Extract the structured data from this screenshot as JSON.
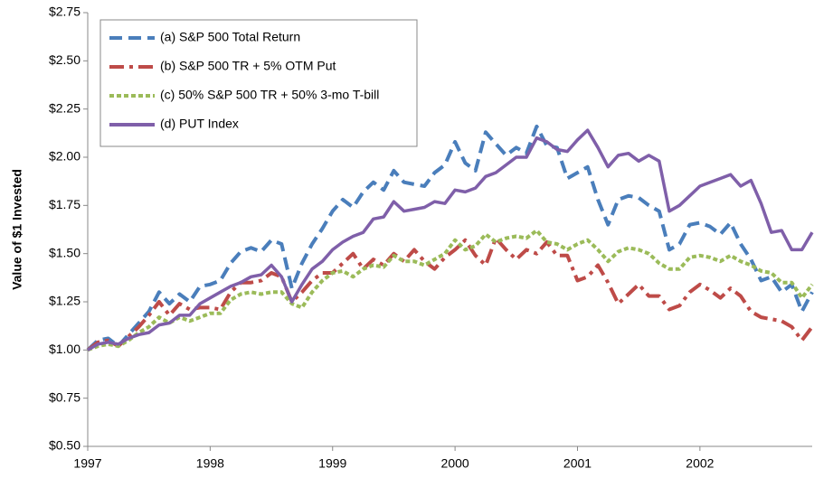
{
  "chart_data": {
    "type": "line",
    "y_label": "Value of $1 Invested",
    "x": [
      1997,
      1997.083,
      1997.167,
      1997.25,
      1997.333,
      1997.417,
      1997.5,
      1997.583,
      1997.667,
      1997.75,
      1997.833,
      1997.917,
      1998,
      1998.083,
      1998.167,
      1998.25,
      1998.333,
      1998.417,
      1998.5,
      1998.583,
      1998.667,
      1998.75,
      1998.833,
      1998.917,
      1999,
      1999.083,
      1999.167,
      1999.25,
      1999.333,
      1999.417,
      1999.5,
      1999.583,
      1999.667,
      1999.75,
      1999.833,
      1999.917,
      2000,
      2000.083,
      2000.167,
      2000.25,
      2000.333,
      2000.417,
      2000.5,
      2000.583,
      2000.667,
      2000.75,
      2000.833,
      2000.917,
      2001,
      2001.083,
      2001.167,
      2001.25,
      2001.333,
      2001.417,
      2001.5,
      2001.583,
      2001.667,
      2001.75,
      2001.833,
      2001.917,
      2002,
      2002.083,
      2002.167,
      2002.25,
      2002.333,
      2002.417,
      2002.5,
      2002.583,
      2002.667,
      2002.75,
      2002.833,
      2002.917
    ],
    "series": [
      {
        "name": "(a) S&P 500 Total Return",
        "color": "#4a7ebb",
        "dash": "dashed",
        "values": [
          1.0,
          1.05,
          1.06,
          1.02,
          1.08,
          1.14,
          1.2,
          1.3,
          1.24,
          1.29,
          1.25,
          1.33,
          1.34,
          1.36,
          1.45,
          1.51,
          1.53,
          1.51,
          1.57,
          1.55,
          1.32,
          1.45,
          1.55,
          1.63,
          1.72,
          1.78,
          1.74,
          1.82,
          1.87,
          1.83,
          1.93,
          1.87,
          1.86,
          1.85,
          1.92,
          1.96,
          2.08,
          1.97,
          1.93,
          2.13,
          2.07,
          2.01,
          2.05,
          2.02,
          2.16,
          2.06,
          2.05,
          1.89,
          1.92,
          1.95,
          1.78,
          1.65,
          1.78,
          1.8,
          1.79,
          1.75,
          1.72,
          1.52,
          1.55,
          1.65,
          1.66,
          1.64,
          1.6,
          1.66,
          1.55,
          1.47,
          1.36,
          1.38,
          1.3,
          1.34,
          1.2,
          1.3
        ]
      },
      {
        "name": "(b) S&P 500 TR + 5% OTM Put",
        "color": "#be4b48",
        "dash": "dashdot",
        "values": [
          1.0,
          1.04,
          1.05,
          1.02,
          1.07,
          1.12,
          1.18,
          1.25,
          1.18,
          1.24,
          1.21,
          1.22,
          1.22,
          1.21,
          1.3,
          1.35,
          1.35,
          1.36,
          1.4,
          1.38,
          1.25,
          1.3,
          1.36,
          1.4,
          1.4,
          1.45,
          1.5,
          1.42,
          1.47,
          1.44,
          1.5,
          1.46,
          1.52,
          1.46,
          1.42,
          1.48,
          1.52,
          1.57,
          1.49,
          1.44,
          1.58,
          1.52,
          1.47,
          1.52,
          1.5,
          1.56,
          1.49,
          1.49,
          1.36,
          1.38,
          1.44,
          1.35,
          1.24,
          1.29,
          1.34,
          1.28,
          1.28,
          1.21,
          1.23,
          1.3,
          1.34,
          1.31,
          1.27,
          1.32,
          1.28,
          1.2,
          1.17,
          1.16,
          1.15,
          1.12,
          1.05,
          1.12
        ]
      },
      {
        "name": "(c) 50% S&P 500 TR + 50% 3-mo T-bill",
        "color": "#9bbb59",
        "dash": "dotted",
        "values": [
          1.0,
          1.02,
          1.03,
          1.02,
          1.05,
          1.09,
          1.12,
          1.17,
          1.14,
          1.17,
          1.15,
          1.17,
          1.19,
          1.19,
          1.26,
          1.29,
          1.3,
          1.29,
          1.3,
          1.3,
          1.24,
          1.22,
          1.3,
          1.36,
          1.4,
          1.41,
          1.38,
          1.42,
          1.44,
          1.43,
          1.49,
          1.46,
          1.46,
          1.44,
          1.47,
          1.5,
          1.57,
          1.52,
          1.54,
          1.6,
          1.56,
          1.58,
          1.59,
          1.58,
          1.62,
          1.56,
          1.55,
          1.52,
          1.55,
          1.57,
          1.52,
          1.46,
          1.51,
          1.53,
          1.52,
          1.5,
          1.45,
          1.42,
          1.42,
          1.48,
          1.49,
          1.48,
          1.46,
          1.49,
          1.46,
          1.44,
          1.41,
          1.4,
          1.35,
          1.35,
          1.27,
          1.34
        ]
      },
      {
        "name": "(d) PUT Index",
        "color": "#7f5fa9",
        "dash": "solid",
        "values": [
          1.0,
          1.03,
          1.04,
          1.03,
          1.06,
          1.08,
          1.09,
          1.13,
          1.14,
          1.18,
          1.18,
          1.24,
          1.27,
          1.3,
          1.33,
          1.35,
          1.38,
          1.39,
          1.44,
          1.38,
          1.25,
          1.34,
          1.42,
          1.46,
          1.52,
          1.56,
          1.59,
          1.61,
          1.68,
          1.69,
          1.77,
          1.72,
          1.73,
          1.74,
          1.77,
          1.76,
          1.83,
          1.82,
          1.84,
          1.9,
          1.92,
          1.96,
          2.0,
          2.0,
          2.1,
          2.08,
          2.04,
          2.03,
          2.09,
          2.14,
          2.05,
          1.95,
          2.01,
          2.02,
          1.98,
          2.01,
          1.98,
          1.72,
          1.75,
          1.8,
          1.85,
          1.87,
          1.89,
          1.91,
          1.85,
          1.88,
          1.76,
          1.61,
          1.62,
          1.52,
          1.52,
          1.61
        ]
      }
    ],
    "xlim": [
      1997,
      2002.917
    ],
    "xticks": [
      1997,
      1998,
      1999,
      2000,
      2001,
      2002
    ],
    "ylim": [
      0.5,
      2.75
    ],
    "yticks": [
      {
        "value": 0.5,
        "label": "$0.50"
      },
      {
        "value": 0.75,
        "label": "$0.75"
      },
      {
        "value": 1,
        "label": "$1.00"
      },
      {
        "value": 1.25,
        "label": "$1.25"
      },
      {
        "value": 1.5,
        "label": "$1.50"
      },
      {
        "value": 1.75,
        "label": "$1.75"
      },
      {
        "value": 2,
        "label": "$2.00"
      },
      {
        "value": 2.25,
        "label": "$2.25"
      },
      {
        "value": 2.5,
        "label": "$2.50"
      },
      {
        "value": 2.75,
        "label": "$2.75"
      }
    ],
    "legend": "top-left"
  }
}
